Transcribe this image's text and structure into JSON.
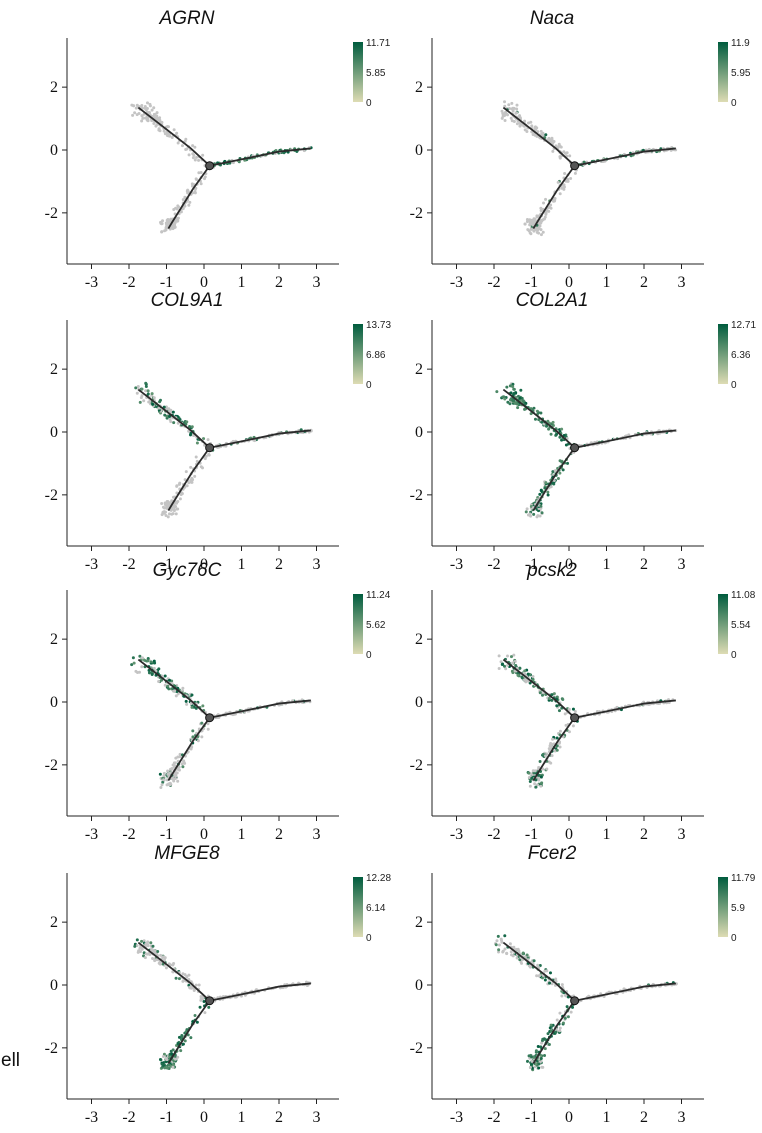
{
  "fragment_text": "ell",
  "colors": {
    "low": "#dedcb4",
    "high": "#005c3e",
    "background_cells": "#c4c4c4",
    "trajectory": "#2b2b2b"
  },
  "chart_data": [
    {
      "type": "scatter",
      "title": "AGRN",
      "xlim": [
        -3.6,
        3.6
      ],
      "ylim": [
        -3.5,
        3.5
      ],
      "x_ticks": [
        -3,
        -2,
        -1,
        0,
        1,
        2,
        3
      ],
      "y_ticks": [
        2,
        0,
        -2
      ],
      "colorbar": {
        "max": "11.71",
        "mid": "5.85",
        "min": "0"
      },
      "expression": {
        "upper_left": 0.0,
        "right": 0.7,
        "lower": 0.0,
        "center": 0.35
      }
    },
    {
      "type": "scatter",
      "title": "Naca",
      "xlim": [
        -3.6,
        3.6
      ],
      "ylim": [
        -3.5,
        3.5
      ],
      "x_ticks": [
        -3,
        -2,
        -1,
        0,
        1,
        2,
        3
      ],
      "y_ticks": [
        2,
        0,
        -2
      ],
      "colorbar": {
        "max": "11.9",
        "mid": "5.95",
        "min": "0"
      },
      "expression": {
        "upper_left": 0.05,
        "right": 0.3,
        "lower": 0.05,
        "center": 0.2
      }
    },
    {
      "type": "scatter",
      "title": "COL9A1",
      "xlim": [
        -3.6,
        3.6
      ],
      "ylim": [
        -3.5,
        3.5
      ],
      "x_ticks": [
        -3,
        -2,
        -1,
        0,
        1,
        2,
        3
      ],
      "y_ticks": [
        2,
        0,
        -2
      ],
      "colorbar": {
        "max": "13.73",
        "mid": "6.86",
        "min": "0"
      },
      "expression": {
        "upper_left": 0.55,
        "right": 0.15,
        "lower": 0.0,
        "center": 0.3
      }
    },
    {
      "type": "scatter",
      "title": "COL2A1",
      "xlim": [
        -3.6,
        3.6
      ],
      "ylim": [
        -3.5,
        3.5
      ],
      "x_ticks": [
        -3,
        -2,
        -1,
        0,
        1,
        2,
        3
      ],
      "y_ticks": [
        2,
        0,
        -2
      ],
      "colorbar": {
        "max": "12.71",
        "mid": "6.36",
        "min": "0"
      },
      "expression": {
        "upper_left": 0.9,
        "right": 0.2,
        "lower": 0.55,
        "center": 0.5
      }
    },
    {
      "type": "scatter",
      "title": "Gyc76C",
      "xlim": [
        -3.6,
        3.6
      ],
      "ylim": [
        -3.5,
        3.5
      ],
      "x_ticks": [
        -3,
        -2,
        -1,
        0,
        1,
        2,
        3
      ],
      "y_ticks": [
        2,
        0,
        -2
      ],
      "colorbar": {
        "max": "11.24",
        "mid": "5.62",
        "min": "0"
      },
      "expression": {
        "upper_left": 0.6,
        "right": 0.05,
        "lower": 0.35,
        "center": 0.25
      }
    },
    {
      "type": "scatter",
      "title": "pcsk2",
      "xlim": [
        -3.6,
        3.6
      ],
      "ylim": [
        -3.5,
        3.5
      ],
      "x_ticks": [
        -3,
        -2,
        -1,
        0,
        1,
        2,
        3
      ],
      "y_ticks": [
        2,
        0,
        -2
      ],
      "colorbar": {
        "max": "11.08",
        "mid": "5.54",
        "min": "0"
      },
      "expression": {
        "upper_left": 0.55,
        "right": 0.05,
        "lower": 0.45,
        "center": 0.25
      }
    },
    {
      "type": "scatter",
      "title": "MFGE8",
      "xlim": [
        -3.6,
        3.6
      ],
      "ylim": [
        -3.5,
        3.5
      ],
      "x_ticks": [
        -3,
        -2,
        -1,
        0,
        1,
        2,
        3
      ],
      "y_ticks": [
        2,
        0,
        -2
      ],
      "colorbar": {
        "max": "12.28",
        "mid": "6.14",
        "min": "0"
      },
      "expression": {
        "upper_left": 0.15,
        "right": 0.0,
        "lower": 0.85,
        "center": 0.35
      }
    },
    {
      "type": "scatter",
      "title": "Fcer2",
      "xlim": [
        -3.6,
        3.6
      ],
      "ylim": [
        -3.5,
        3.5
      ],
      "x_ticks": [
        -3,
        -2,
        -1,
        0,
        1,
        2,
        3
      ],
      "y_ticks": [
        2,
        0,
        -2
      ],
      "colorbar": {
        "max": "11.79",
        "mid": "5.9",
        "min": "0"
      },
      "expression": {
        "upper_left": 0.25,
        "right": 0.05,
        "lower": 0.7,
        "center": 0.3
      }
    }
  ]
}
